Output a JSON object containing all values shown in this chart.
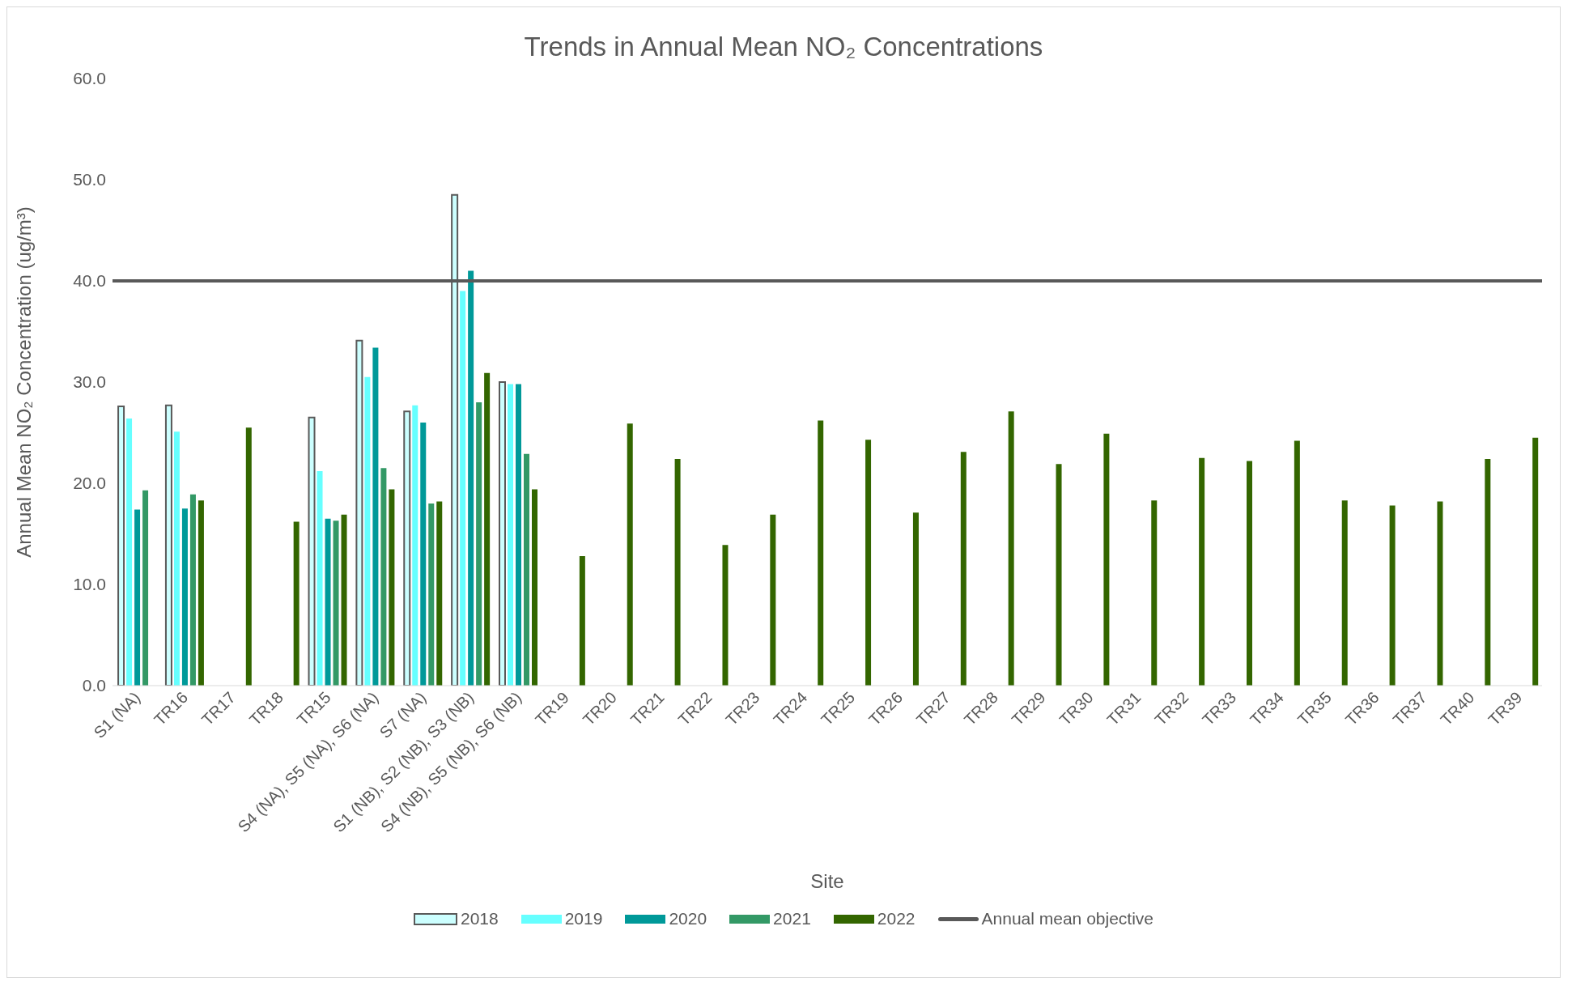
{
  "chart_data": {
    "type": "bar",
    "title": "Trends in Annual Mean NO₂ Concentrations",
    "xlabel": "Site",
    "ylabel": "Annual Mean NO₂ Concentration (ug/m³)",
    "categories": [
      "S1 (NA)",
      "TR16",
      "TR17",
      "TR18",
      "TR15",
      "S4 (NA), S5 (NA), S6 (NA)",
      "S7 (NA)",
      "S1 (NB), S2 (NB), S3 (NB)",
      "S4 (NB), S5 (NB), S6 (NB)",
      "TR19",
      "TR20",
      "TR21",
      "TR22",
      "TR23",
      "TR24",
      "TR25",
      "TR26",
      "TR27",
      "TR28",
      "TR29",
      "TR30",
      "TR31",
      "TR32",
      "TR33",
      "TR34",
      "TR35",
      "TR36",
      "TR37",
      "TR40",
      "TR39"
    ],
    "series": [
      {
        "name": "2018",
        "color": "#ccffff",
        "values": [
          27.6,
          27.7,
          null,
          null,
          26.5,
          34.1,
          27.1,
          48.5,
          30.0,
          null,
          null,
          null,
          null,
          null,
          null,
          null,
          null,
          null,
          null,
          null,
          null,
          null,
          null,
          null,
          null,
          null,
          null,
          null,
          null,
          null
        ]
      },
      {
        "name": "2019",
        "color": "#66ffff",
        "values": [
          26.4,
          25.1,
          null,
          null,
          21.2,
          30.5,
          27.7,
          39.0,
          29.8,
          null,
          null,
          null,
          null,
          null,
          null,
          null,
          null,
          null,
          null,
          null,
          null,
          null,
          null,
          null,
          null,
          null,
          null,
          null,
          null,
          null
        ]
      },
      {
        "name": "2020",
        "color": "#009999",
        "values": [
          17.4,
          17.5,
          null,
          null,
          16.5,
          33.4,
          26.0,
          41.0,
          29.8,
          null,
          null,
          null,
          null,
          null,
          null,
          null,
          null,
          null,
          null,
          null,
          null,
          null,
          null,
          null,
          null,
          null,
          null,
          null,
          null,
          null
        ]
      },
      {
        "name": "2021",
        "color": "#339966",
        "values": [
          19.3,
          18.9,
          null,
          null,
          16.3,
          21.5,
          18.0,
          28.0,
          22.9,
          null,
          null,
          null,
          null,
          null,
          null,
          null,
          null,
          null,
          null,
          null,
          null,
          null,
          null,
          null,
          null,
          null,
          null,
          null,
          null,
          null
        ]
      },
      {
        "name": "2022",
        "color": "#336600",
        "values": [
          null,
          18.3,
          25.5,
          16.2,
          16.9,
          19.4,
          18.2,
          30.9,
          19.4,
          12.8,
          25.9,
          22.4,
          13.9,
          16.9,
          26.2,
          24.3,
          17.1,
          23.1,
          27.1,
          21.9,
          24.9,
          18.3,
          22.5,
          22.2,
          24.2,
          18.3,
          17.8,
          18.2,
          22.4,
          24.5
        ]
      }
    ],
    "ylim": [
      0,
      60
    ],
    "yticks": [
      {
        "value": 0,
        "label": "0.0"
      },
      {
        "value": 10,
        "label": "10.0"
      },
      {
        "value": 20,
        "label": "20.0"
      },
      {
        "value": 30,
        "label": "30.0"
      },
      {
        "value": 40,
        "label": "40.0"
      },
      {
        "value": 50,
        "label": "50.0"
      },
      {
        "value": 60,
        "label": "60.0"
      }
    ],
    "ref_lines": [
      {
        "axis": "y",
        "value": 40,
        "label": "Annual mean objective",
        "color": "#595959"
      }
    ],
    "grid": false,
    "legend": "bottom"
  }
}
